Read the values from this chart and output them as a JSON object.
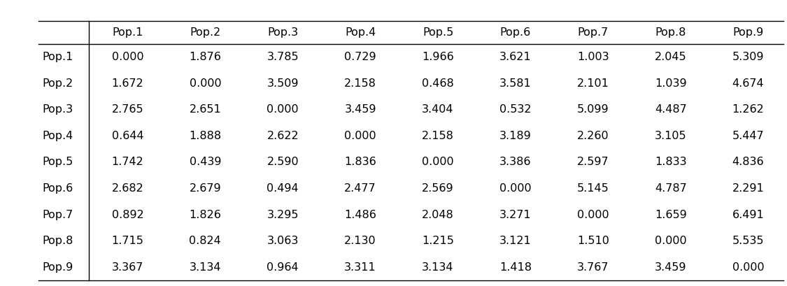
{
  "col_labels": [
    "Pop.1",
    "Pop.2",
    "Pop.3",
    "Pop.4",
    "Pop.5",
    "Pop.6",
    "Pop.7",
    "Pop.8",
    "Pop.9"
  ],
  "row_labels": [
    "Pop.1",
    "Pop.2",
    "Pop.3",
    "Pop.4",
    "Pop.5",
    "Pop.6",
    "Pop.7",
    "Pop.8",
    "Pop.9"
  ],
  "values": [
    [
      "0.000",
      "1.876",
      "3.785",
      "0.729",
      "1.966",
      "3.621",
      "1.003",
      "2.045",
      "5.309"
    ],
    [
      "1.672",
      "0.000",
      "3.509",
      "2.158",
      "0.468",
      "3.581",
      "2.101",
      "1.039",
      "4.674"
    ],
    [
      "2.765",
      "2.651",
      "0.000",
      "3.459",
      "3.404",
      "0.532",
      "5.099",
      "4.487",
      "1.262"
    ],
    [
      "0.644",
      "1.888",
      "2.622",
      "0.000",
      "2.158",
      "3.189",
      "2.260",
      "3.105",
      "5.447"
    ],
    [
      "1.742",
      "0.439",
      "2.590",
      "1.836",
      "0.000",
      "3.386",
      "2.597",
      "1.833",
      "4.836"
    ],
    [
      "2.682",
      "2.679",
      "0.494",
      "2.477",
      "2.569",
      "0.000",
      "5.145",
      "4.787",
      "2.291"
    ],
    [
      "0.892",
      "1.826",
      "3.295",
      "1.486",
      "2.048",
      "3.271",
      "0.000",
      "1.659",
      "6.491"
    ],
    [
      "1.715",
      "0.824",
      "3.063",
      "2.130",
      "1.215",
      "3.121",
      "1.510",
      "0.000",
      "5.535"
    ],
    [
      "3.367",
      "3.134",
      "0.964",
      "3.311",
      "3.134",
      "1.418",
      "3.767",
      "3.459",
      "0.000"
    ]
  ],
  "background_color": "#ffffff",
  "line_color": "#000000",
  "text_color": "#000000",
  "font_size": 11.5,
  "figsize": [
    11.25,
    4.09
  ],
  "dpi": 100
}
